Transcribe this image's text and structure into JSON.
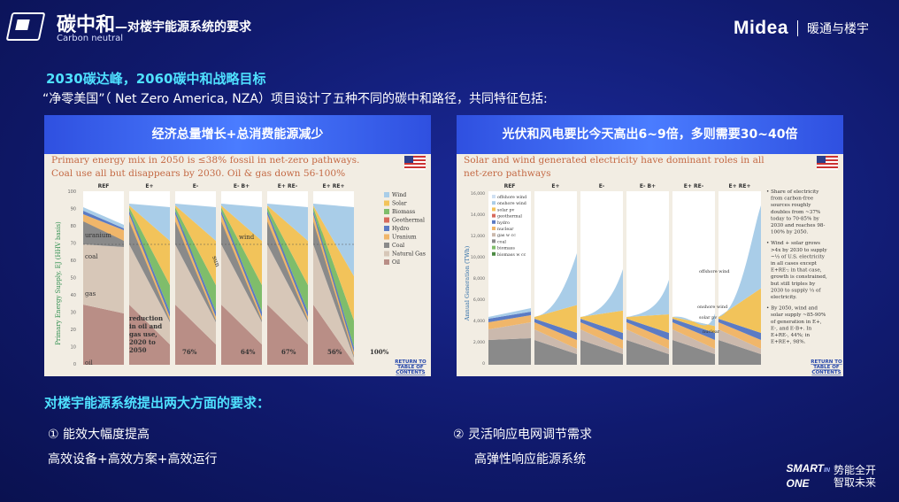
{
  "header": {
    "title_main": "碳中和",
    "title_sub": "—对楼宇能源系统的要求",
    "title_en": "Carbon neutral",
    "brand": "Midea",
    "brand_division": "暖通与楼宇"
  },
  "section_goal": "2030碳达峰，2060碳中和战略目标",
  "intro": "“净零美国”（ Net Zero America, NZA）项目设计了五种不同的碳中和路径，共同特征包括:",
  "panel_left": {
    "header": "经济总量增长+总消费能源减少",
    "caption_1": "Primary energy mix in 2050 is ≤38% fossil in net-zero pathways.",
    "caption_2": "Coal use all but disappears by 2030. Oil & gas down 56-100%",
    "y_label": "Primary Energy Supply, EJ (HHV basis)",
    "scenarios": [
      "REF",
      "E+",
      "E-",
      "E- B+",
      "E+ RE-",
      "E+ RE+"
    ],
    "yticks": [
      "100",
      "90",
      "80",
      "70",
      "60",
      "50",
      "40",
      "30",
      "20",
      "10",
      "0"
    ],
    "legend": [
      "Wind",
      "Solar",
      "Biomass",
      "Geothermal",
      "Hydro",
      "Uranium",
      "Coal",
      "Natural Gas",
      "Oil"
    ],
    "legend_colors": [
      "#a9cde8",
      "#f2c35a",
      "#7fbd6b",
      "#d76a5c",
      "#5b7bc4",
      "#f0b66a",
      "#8a8a8a",
      "#d7c7b8",
      "#b98e86"
    ],
    "annotations": {
      "coal": "coal",
      "uranium": "uranium",
      "gas": "gas",
      "oil": "oil",
      "wind": "wind",
      "sun": "sun",
      "pct_e_plus": "76%",
      "pct_e_minus": "64%",
      "pct_eb": "67%",
      "pct_ere_minus": "56%",
      "pct_ere_plus": "100%",
      "reduction_note": [
        "reduction",
        "in oil and",
        "gas use,",
        "2020 to",
        "2050"
      ]
    },
    "return_link": [
      "RETURN TO",
      "TABLE OF",
      "CONTENTS"
    ]
  },
  "panel_right": {
    "header": "光伏和风电要比今天高出6~9倍，多则需要30~40倍",
    "caption_1": "Solar and wind generated electricity have dominant roles in all",
    "caption_2": "net-zero pathways",
    "y_label": "Annual Generation (TWh)",
    "scenarios": [
      "REF",
      "E+",
      "E-",
      "E- B+",
      "E+ RE-",
      "E+ RE+"
    ],
    "yticks": [
      "16,000",
      "14,000",
      "12,000",
      "10,000",
      "8,000",
      "6,000",
      "4,000",
      "2,000",
      "0"
    ],
    "legend": [
      "offshore wind",
      "onshore wind",
      "solar pv",
      "geothermal",
      "hydro",
      "nuclear",
      "gas w cc",
      "coal",
      "biomass",
      "biomass w cc"
    ],
    "legend_colors": [
      "#cfe0f2",
      "#a9cde8",
      "#f2c35a",
      "#d76a5c",
      "#5b7bc4",
      "#f0b66a",
      "#cbb9ad",
      "#8a8a8a",
      "#7fbd6b",
      "#4c8a43"
    ],
    "annotations": {
      "offshore_wind": "offshore wind",
      "onshore_wind": "onshore wind",
      "solar_pv": "solar pv",
      "nuclear": "nuclear"
    },
    "notes": [
      "Share of electricity",
      "from carbon-free",
      "sources roughly",
      "doubles from ~37%",
      "today to 70-85% by",
      "2030 and reaches 98-",
      "100% by 2050.",
      "Wind + solar grows",
      ">4x by 2030 to supply",
      "~⅓ of U.S. electricity",
      "in all cases except",
      "E+RE-; in that case,",
      "growth is constrained,",
      "but still triples by",
      "2030 to supply ⅓ of",
      "electricity.",
      "By 2050, wind and",
      "solar supply ~85-90%",
      "of generation in E+,",
      "E-, and E-B+. In",
      "E+RE-, 44%; in",
      "E+RE+, 98%."
    ],
    "return_link": [
      "RETURN TO",
      "TABLE OF",
      "CONTENTS"
    ]
  },
  "section_requirements": "对楼宇能源系统提出两大方面的要求：",
  "requirements": [
    {
      "title": "① 能效大幅度提高",
      "detail": "高效设备+高效方案+高效运行"
    },
    {
      "title": "② 灵活响应电网调节需求",
      "detail": "高弹性响应能源系统"
    }
  ],
  "footer": {
    "smart": "SMART",
    "in": "IN",
    "one": "ONE",
    "cn_1": "势能全开",
    "cn_2": "智取未来"
  }
}
